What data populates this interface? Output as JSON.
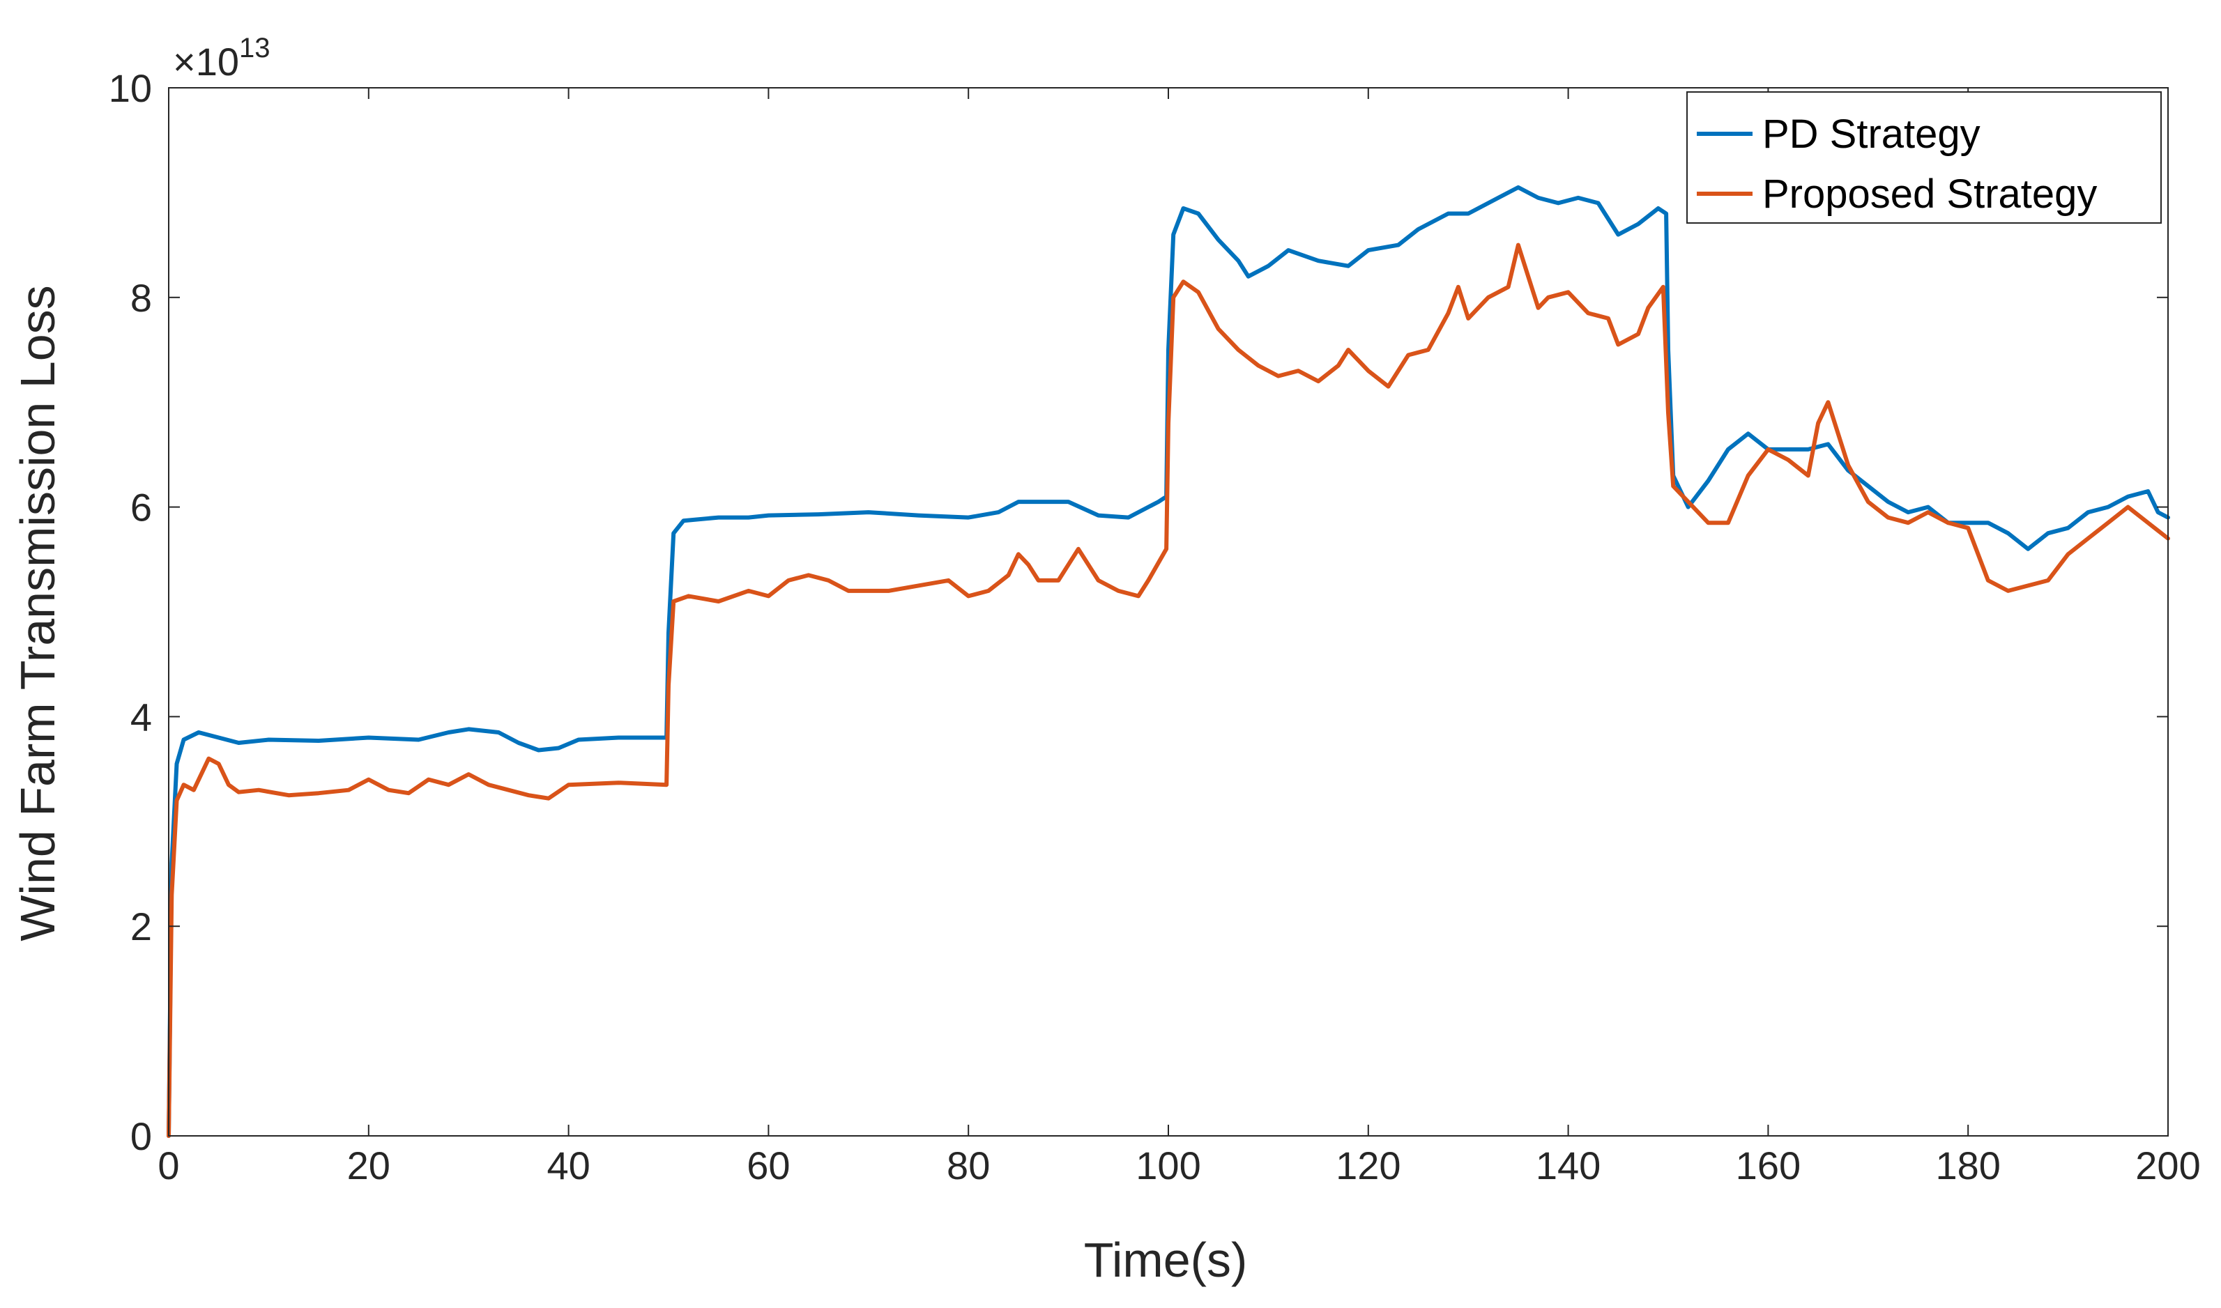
{
  "chart_data": {
    "type": "line",
    "xlabel": "Time(s)",
    "ylabel": "Wind Farm Transmission Loss",
    "xlim": [
      0,
      200
    ],
    "ylim": [
      0,
      10
    ],
    "xticks": [
      0,
      20,
      40,
      60,
      80,
      100,
      120,
      140,
      160,
      180,
      200
    ],
    "yticks": [
      0,
      2,
      4,
      6,
      8,
      10
    ],
    "y_exponent_prefix": "×10",
    "y_exponent_power": "13",
    "grid": false,
    "legend_position": "top-right",
    "series": [
      {
        "name": "PD Strategy",
        "color": "#0072BD",
        "points": [
          [
            0,
            0
          ],
          [
            0.3,
            2.6
          ],
          [
            0.8,
            3.55
          ],
          [
            1.5,
            3.78
          ],
          [
            3,
            3.85
          ],
          [
            5,
            3.8
          ],
          [
            7,
            3.75
          ],
          [
            10,
            3.78
          ],
          [
            15,
            3.77
          ],
          [
            20,
            3.8
          ],
          [
            25,
            3.78
          ],
          [
            28,
            3.85
          ],
          [
            30,
            3.88
          ],
          [
            33,
            3.85
          ],
          [
            35,
            3.75
          ],
          [
            37,
            3.68
          ],
          [
            39,
            3.7
          ],
          [
            41,
            3.78
          ],
          [
            45,
            3.8
          ],
          [
            49.8,
            3.8
          ],
          [
            50,
            4.8
          ],
          [
            50.5,
            5.75
          ],
          [
            51.5,
            5.87
          ],
          [
            55,
            5.9
          ],
          [
            58,
            5.9
          ],
          [
            60,
            5.92
          ],
          [
            65,
            5.93
          ],
          [
            70,
            5.95
          ],
          [
            75,
            5.92
          ],
          [
            80,
            5.9
          ],
          [
            83,
            5.95
          ],
          [
            85,
            6.05
          ],
          [
            88,
            6.05
          ],
          [
            90,
            6.05
          ],
          [
            93,
            5.92
          ],
          [
            96,
            5.9
          ],
          [
            99,
            6.05
          ],
          [
            99.8,
            6.1
          ],
          [
            100,
            7.5
          ],
          [
            100.5,
            8.6
          ],
          [
            101.5,
            8.85
          ],
          [
            103,
            8.8
          ],
          [
            105,
            8.55
          ],
          [
            107,
            8.35
          ],
          [
            108,
            8.2
          ],
          [
            110,
            8.3
          ],
          [
            112,
            8.45
          ],
          [
            115,
            8.35
          ],
          [
            118,
            8.3
          ],
          [
            120,
            8.45
          ],
          [
            123,
            8.5
          ],
          [
            125,
            8.65
          ],
          [
            128,
            8.8
          ],
          [
            130,
            8.8
          ],
          [
            133,
            8.95
          ],
          [
            135,
            9.05
          ],
          [
            137,
            8.95
          ],
          [
            139,
            8.9
          ],
          [
            141,
            8.95
          ],
          [
            143,
            8.9
          ],
          [
            145,
            8.6
          ],
          [
            147,
            8.7
          ],
          [
            149,
            8.85
          ],
          [
            149.8,
            8.8
          ],
          [
            150,
            7.5
          ],
          [
            150.5,
            6.3
          ],
          [
            152,
            6.0
          ],
          [
            154,
            6.25
          ],
          [
            156,
            6.55
          ],
          [
            158,
            6.7
          ],
          [
            160,
            6.55
          ],
          [
            162,
            6.55
          ],
          [
            164,
            6.55
          ],
          [
            166,
            6.6
          ],
          [
            168,
            6.35
          ],
          [
            170,
            6.2
          ],
          [
            172,
            6.05
          ],
          [
            174,
            5.95
          ],
          [
            176,
            6.0
          ],
          [
            178,
            5.85
          ],
          [
            180,
            5.85
          ],
          [
            182,
            5.85
          ],
          [
            184,
            5.75
          ],
          [
            186,
            5.6
          ],
          [
            188,
            5.75
          ],
          [
            190,
            5.8
          ],
          [
            192,
            5.95
          ],
          [
            194,
            6.0
          ],
          [
            196,
            6.1
          ],
          [
            198,
            6.15
          ],
          [
            199,
            5.95
          ],
          [
            200,
            5.9
          ]
        ]
      },
      {
        "name": "Proposed Strategy",
        "color": "#D95319",
        "points": [
          [
            0,
            0
          ],
          [
            0.3,
            2.3
          ],
          [
            0.8,
            3.2
          ],
          [
            1.5,
            3.35
          ],
          [
            2.5,
            3.3
          ],
          [
            4,
            3.6
          ],
          [
            5,
            3.55
          ],
          [
            6,
            3.35
          ],
          [
            7,
            3.28
          ],
          [
            9,
            3.3
          ],
          [
            12,
            3.25
          ],
          [
            15,
            3.27
          ],
          [
            18,
            3.3
          ],
          [
            20,
            3.4
          ],
          [
            22,
            3.3
          ],
          [
            24,
            3.27
          ],
          [
            26,
            3.4
          ],
          [
            28,
            3.35
          ],
          [
            30,
            3.45
          ],
          [
            32,
            3.35
          ],
          [
            34,
            3.3
          ],
          [
            36,
            3.25
          ],
          [
            38,
            3.22
          ],
          [
            40,
            3.35
          ],
          [
            45,
            3.37
          ],
          [
            49.8,
            3.35
          ],
          [
            50,
            4.3
          ],
          [
            50.5,
            5.1
          ],
          [
            52,
            5.15
          ],
          [
            55,
            5.1
          ],
          [
            58,
            5.2
          ],
          [
            60,
            5.15
          ],
          [
            62,
            5.3
          ],
          [
            64,
            5.35
          ],
          [
            66,
            5.3
          ],
          [
            68,
            5.2
          ],
          [
            72,
            5.2
          ],
          [
            75,
            5.25
          ],
          [
            78,
            5.3
          ],
          [
            80,
            5.15
          ],
          [
            82,
            5.2
          ],
          [
            84,
            5.35
          ],
          [
            85,
            5.55
          ],
          [
            86,
            5.45
          ],
          [
            87,
            5.3
          ],
          [
            89,
            5.3
          ],
          [
            90,
            5.45
          ],
          [
            91,
            5.6
          ],
          [
            93,
            5.3
          ],
          [
            95,
            5.2
          ],
          [
            97,
            5.15
          ],
          [
            98,
            5.3
          ],
          [
            99.8,
            5.6
          ],
          [
            100,
            6.8
          ],
          [
            100.5,
            8.0
          ],
          [
            101.5,
            8.15
          ],
          [
            103,
            8.05
          ],
          [
            105,
            7.7
          ],
          [
            107,
            7.5
          ],
          [
            109,
            7.35
          ],
          [
            111,
            7.25
          ],
          [
            113,
            7.3
          ],
          [
            115,
            7.2
          ],
          [
            117,
            7.35
          ],
          [
            118,
            7.5
          ],
          [
            120,
            7.3
          ],
          [
            122,
            7.15
          ],
          [
            124,
            7.45
          ],
          [
            126,
            7.5
          ],
          [
            128,
            7.85
          ],
          [
            129,
            8.1
          ],
          [
            130,
            7.8
          ],
          [
            132,
            8.0
          ],
          [
            134,
            8.1
          ],
          [
            135,
            8.5
          ],
          [
            136,
            8.2
          ],
          [
            137,
            7.9
          ],
          [
            138,
            8.0
          ],
          [
            140,
            8.05
          ],
          [
            142,
            7.85
          ],
          [
            144,
            7.8
          ],
          [
            145,
            7.55
          ],
          [
            147,
            7.65
          ],
          [
            148,
            7.9
          ],
          [
            149.5,
            8.1
          ],
          [
            150,
            6.9
          ],
          [
            150.5,
            6.2
          ],
          [
            152,
            6.05
          ],
          [
            154,
            5.85
          ],
          [
            156,
            5.85
          ],
          [
            158,
            6.3
          ],
          [
            160,
            6.55
          ],
          [
            162,
            6.45
          ],
          [
            164,
            6.3
          ],
          [
            165,
            6.8
          ],
          [
            166,
            7.0
          ],
          [
            168,
            6.4
          ],
          [
            170,
            6.05
          ],
          [
            172,
            5.9
          ],
          [
            174,
            5.85
          ],
          [
            176,
            5.95
          ],
          [
            178,
            5.85
          ],
          [
            180,
            5.8
          ],
          [
            182,
            5.3
          ],
          [
            184,
            5.2
          ],
          [
            186,
            5.25
          ],
          [
            188,
            5.3
          ],
          [
            190,
            5.55
          ],
          [
            192,
            5.7
          ],
          [
            194,
            5.85
          ],
          [
            196,
            6.0
          ],
          [
            198,
            5.85
          ],
          [
            200,
            5.7
          ]
        ]
      }
    ]
  }
}
